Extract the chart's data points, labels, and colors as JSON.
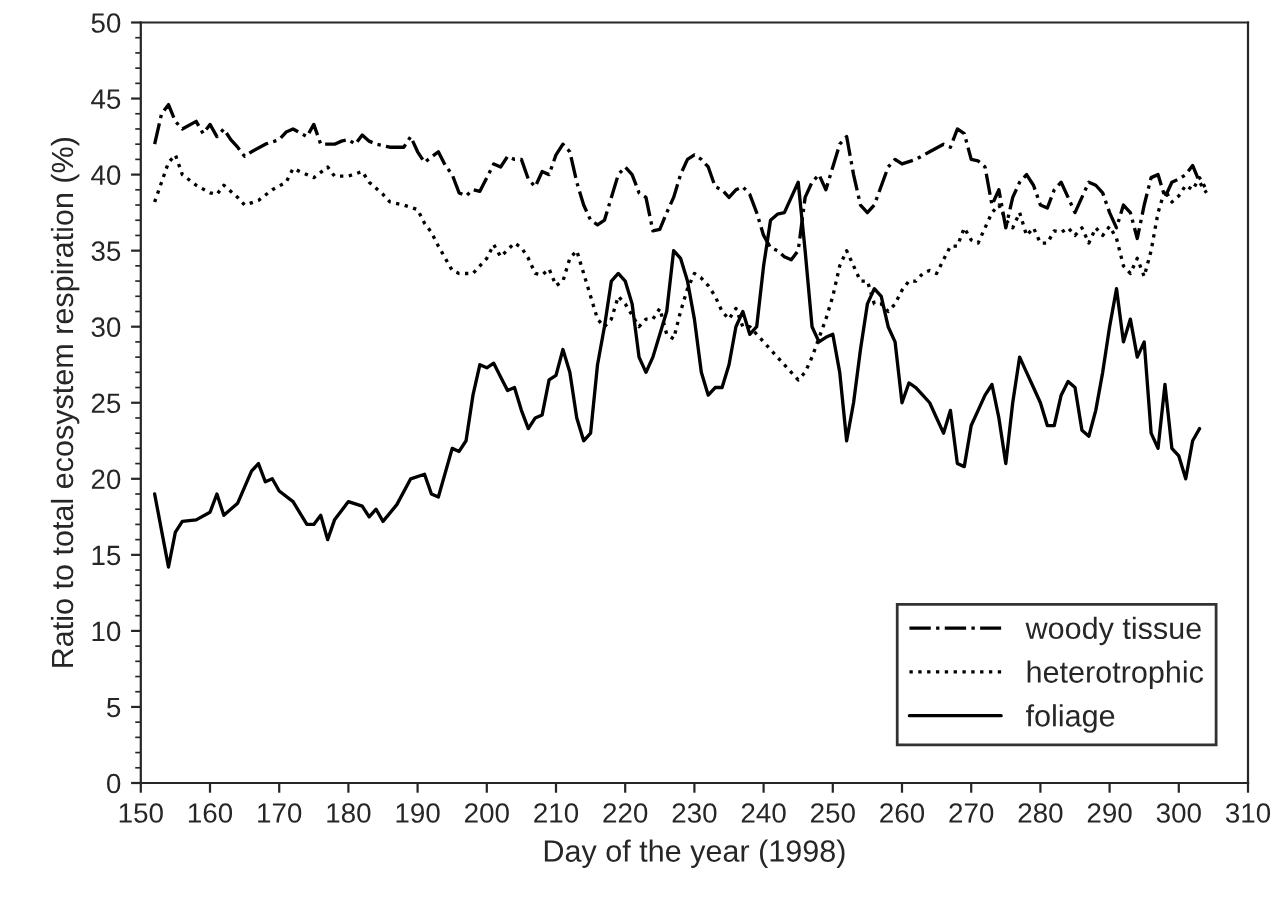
{
  "chart_data": {
    "type": "line",
    "xlabel": "Day of the year (1998)",
    "ylabel": "Ratio to total ecosystem respiration (%)",
    "xlim": [
      150,
      310
    ],
    "xticks": [
      150,
      160,
      170,
      180,
      190,
      200,
      210,
      220,
      230,
      240,
      250,
      260,
      270,
      280,
      290,
      300,
      310
    ],
    "ylim": [
      0,
      50
    ],
    "yticks": [
      0,
      5,
      10,
      15,
      20,
      25,
      30,
      35,
      40,
      45,
      50
    ],
    "grid": false,
    "legend": "bottom right",
    "marker": "none",
    "series": [
      {
        "name": "woody tissue",
        "color": "#000000",
        "line_style": "dashdot",
        "x": [
          152,
          153,
          154,
          155,
          156,
          158,
          159,
          160,
          161,
          162,
          163,
          164,
          165,
          166,
          168,
          170,
          171,
          172,
          174,
          175,
          176,
          178,
          179,
          180,
          181,
          182,
          183,
          184,
          186,
          188,
          189,
          190,
          191,
          193,
          194,
          195,
          196,
          197,
          198,
          199,
          200,
          201,
          202,
          203,
          204,
          205,
          206,
          207,
          208,
          209,
          210,
          211,
          212,
          213,
          214,
          215,
          216,
          217,
          218,
          219,
          220,
          221,
          222,
          223,
          224,
          225,
          226,
          227,
          228,
          229,
          230,
          231,
          232,
          233,
          234,
          235,
          236,
          237,
          238,
          239,
          240,
          241,
          242,
          243,
          244,
          245,
          246,
          247,
          248,
          249,
          250,
          251,
          252,
          253,
          254,
          255,
          256,
          258,
          259,
          260,
          262,
          264,
          266,
          267,
          268,
          269,
          270,
          271,
          272,
          273,
          274,
          275,
          276,
          277,
          278,
          279,
          280,
          281,
          282,
          283,
          284,
          285,
          286,
          287,
          288,
          289,
          290,
          291,
          292,
          293,
          294,
          295,
          296,
          297,
          298,
          299,
          300,
          301,
          302,
          303,
          304
        ],
        "values": [
          42,
          44,
          44.6,
          43.5,
          43,
          43.5,
          42.7,
          43.3,
          42.5,
          43,
          42.3,
          41.8,
          41.2,
          41.5,
          42,
          42.3,
          42.8,
          43,
          42.5,
          43.3,
          42,
          42,
          42.2,
          42.3,
          42,
          42.6,
          42.2,
          42,
          41.8,
          41.8,
          42.5,
          41.5,
          40.8,
          41.5,
          40.6,
          40,
          38.8,
          38.6,
          39,
          38.9,
          39.8,
          40.7,
          40.5,
          41.2,
          41,
          41,
          39.7,
          39.2,
          40.2,
          40,
          41.3,
          42,
          41.5,
          39.5,
          38,
          37,
          36.7,
          37,
          38.5,
          40,
          40.5,
          40,
          38.8,
          38.5,
          36.3,
          36.4,
          37.5,
          38.5,
          40,
          41,
          41.3,
          41,
          40.5,
          39.2,
          39,
          38.5,
          39,
          39.2,
          38.7,
          37.5,
          36,
          35.2,
          35,
          34.6,
          34.4,
          35,
          38.5,
          39.5,
          40,
          39,
          40.5,
          42,
          42.5,
          40,
          38,
          37.5,
          38,
          40.5,
          41,
          40.7,
          41,
          41.5,
          42,
          41.8,
          43,
          42.7,
          41,
          40.9,
          40.5,
          38,
          39,
          36.5,
          38.5,
          39.5,
          40,
          39.3,
          38,
          37.8,
          39,
          39.5,
          38.5,
          37.5,
          38.5,
          39.5,
          39.3,
          38.8,
          37.5,
          36.5,
          38,
          37.5,
          35.8,
          38,
          39.8,
          40,
          38.5,
          39.5,
          39.7,
          40,
          40.6,
          39.5,
          38.8
        ]
      },
      {
        "name": "heterotrophic",
        "color": "#000000",
        "line_style": "dotted",
        "x": [
          152,
          153,
          154,
          155,
          156,
          158,
          160,
          161,
          162,
          164,
          165,
          167,
          169,
          171,
          172,
          173,
          175,
          177,
          178,
          180,
          182,
          183,
          185,
          186,
          188,
          190,
          191,
          192,
          193,
          195,
          196,
          198,
          200,
          201,
          202,
          204,
          205,
          206,
          207,
          208,
          209,
          210,
          211,
          212,
          213,
          214,
          215,
          216,
          217,
          218,
          219,
          220,
          222,
          223,
          224,
          225,
          226,
          227,
          228,
          229,
          230,
          231,
          232,
          233,
          234,
          235,
          236,
          237,
          238,
          240,
          242,
          244,
          245,
          246,
          247,
          249,
          250,
          251,
          252,
          253,
          254,
          255,
          256,
          257,
          258,
          259,
          260,
          261,
          262,
          263,
          264,
          265,
          266,
          267,
          268,
          269,
          270,
          271,
          272,
          273,
          274,
          275,
          276,
          277,
          278,
          279,
          280,
          281,
          282,
          283,
          284,
          285,
          286,
          287,
          288,
          289,
          290,
          291,
          292,
          293,
          294,
          295,
          296,
          297,
          298,
          299,
          300,
          301,
          302,
          303,
          304
        ],
        "values": [
          38.2,
          39.5,
          40.8,
          41.3,
          40,
          39.3,
          38.8,
          38.7,
          39.3,
          38.5,
          38,
          38.3,
          39,
          39.5,
          40.4,
          40.2,
          39.8,
          40.5,
          39.9,
          39.9,
          40.2,
          39.5,
          38.7,
          38.2,
          38,
          37.7,
          36.8,
          36.2,
          35.3,
          33.7,
          33.5,
          33.5,
          34.5,
          35.4,
          34.6,
          35.5,
          35.2,
          34.5,
          33.5,
          33.4,
          33.8,
          32.7,
          33,
          34.5,
          35,
          33.5,
          32,
          30.5,
          30,
          30.5,
          32,
          31.5,
          30,
          30.5,
          30.5,
          31.2,
          29.5,
          29.2,
          31,
          32.5,
          33.5,
          33.2,
          32.7,
          32,
          31,
          30.5,
          31.2,
          30,
          30,
          29,
          28,
          27,
          26.5,
          27,
          28,
          30.5,
          32,
          34,
          35,
          34,
          33,
          33,
          31.5,
          31.5,
          31,
          31.5,
          32.4,
          33,
          33,
          33.5,
          33.7,
          33.5,
          34.4,
          35.3,
          35.3,
          36.5,
          35.7,
          35.5,
          36.5,
          37.5,
          38,
          37,
          36.5,
          37.5,
          36,
          36.5,
          35.5,
          35.5,
          36.3,
          36.2,
          36.5,
          36,
          36.5,
          35.5,
          36.5,
          36,
          36.6,
          35.8,
          34,
          33.5,
          34.5,
          33.3,
          35,
          37.5,
          39,
          38.2,
          38.6,
          39.3,
          39,
          39.8,
          39
        ]
      },
      {
        "name": "foliage",
        "color": "#000000",
        "line_style": "solid",
        "x": [
          152,
          154,
          155,
          156,
          158,
          160,
          161,
          162,
          164,
          166,
          167,
          168,
          169,
          170,
          172,
          174,
          175,
          176,
          177,
          178,
          180,
          182,
          183,
          184,
          185,
          187,
          189,
          191,
          192,
          193,
          195,
          196,
          197,
          198,
          199,
          200,
          201,
          202,
          203,
          204,
          205,
          206,
          207,
          208,
          209,
          210,
          211,
          212,
          213,
          214,
          215,
          216,
          217,
          218,
          219,
          220,
          221,
          222,
          223,
          224,
          226,
          227,
          228,
          229,
          230,
          231,
          232,
          233,
          234,
          235,
          236,
          237,
          238,
          239,
          240,
          241,
          242,
          243,
          244,
          245,
          246,
          247,
          248,
          249,
          250,
          251,
          252,
          253,
          254,
          255,
          256,
          257,
          258,
          259,
          260,
          261,
          262,
          263,
          264,
          265,
          266,
          267,
          268,
          269,
          270,
          271,
          272,
          273,
          274,
          275,
          276,
          277,
          278,
          279,
          280,
          281,
          282,
          283,
          284,
          285,
          286,
          287,
          288,
          289,
          290,
          291,
          292,
          293,
          294,
          295,
          296,
          297,
          298,
          299,
          300,
          301,
          302,
          303
        ],
        "values": [
          19,
          14.2,
          16.5,
          17.2,
          17.3,
          17.8,
          19,
          17.6,
          18.4,
          20.5,
          21,
          19.8,
          20,
          19.2,
          18.5,
          17,
          17,
          17.6,
          16,
          17.3,
          18.5,
          18.2,
          17.5,
          18,
          17.2,
          18.3,
          20,
          20.3,
          19,
          18.8,
          22,
          21.8,
          22.5,
          25.5,
          27.5,
          27.3,
          27.6,
          26.7,
          25.8,
          26,
          24.5,
          23.3,
          24,
          24.2,
          26.5,
          26.8,
          28.5,
          27,
          24,
          22.5,
          23,
          27.5,
          30,
          33,
          33.5,
          33,
          31.5,
          28,
          27,
          28,
          31,
          35,
          34.5,
          33,
          30.5,
          27,
          25.5,
          26,
          26,
          27.5,
          30,
          31,
          29.5,
          30,
          34,
          37,
          37.4,
          37.5,
          38.5,
          39.5,
          35,
          30,
          29,
          29.3,
          29.5,
          27,
          22.5,
          25,
          28.5,
          31.5,
          32.5,
          32,
          30,
          29,
          25,
          26.3,
          26,
          25.5,
          25,
          24,
          23,
          24.5,
          21,
          20.8,
          23.5,
          24.5,
          25.5,
          26.2,
          24,
          21,
          25,
          28,
          27,
          26,
          25,
          23.5,
          23.5,
          25.5,
          26.4,
          26,
          23.2,
          22.8,
          24.5,
          27,
          30,
          32.5,
          29,
          30.5,
          28,
          29,
          23,
          22,
          26.2,
          22,
          21.5,
          20,
          22.5,
          23.3
        ]
      }
    ]
  }
}
